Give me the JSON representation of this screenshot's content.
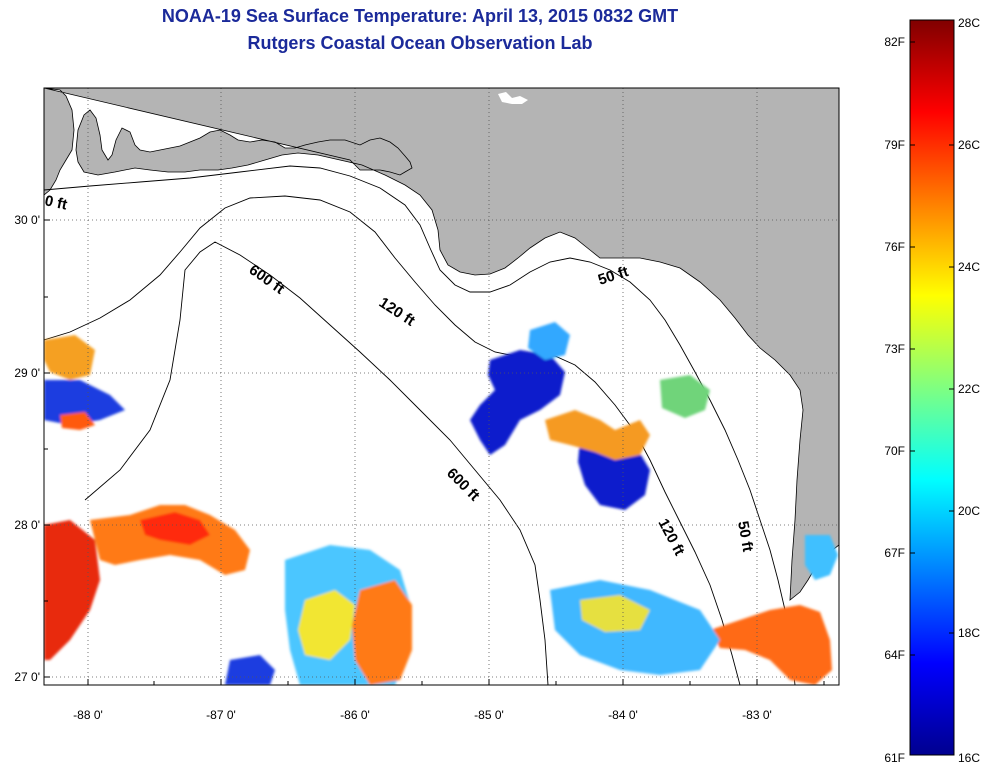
{
  "title": {
    "line1": "NOAA-19 Sea Surface Temperature:  April 13, 2015 0832 GMT",
    "line2": "Rutgers Coastal Ocean Observation Lab"
  },
  "map": {
    "lon_ticks": [
      "-88 0'",
      "-87 0'",
      "-86 0'",
      "-85 0'",
      "-84 0'",
      "-83 0'"
    ],
    "lat_ticks": [
      "30 0'",
      "29 0'",
      "28 0'",
      "27 0'"
    ],
    "contour_labels": [
      "600 ft",
      "120 ft",
      "50 ft",
      "600 ft",
      "120 ft",
      "50 ft",
      "0 ft"
    ]
  },
  "colorbar": {
    "fahrenheit_labels": [
      "82F",
      "79F",
      "76F",
      "73F",
      "70F",
      "67F",
      "64F",
      "61F"
    ],
    "celsius_labels": [
      "28C",
      "26C",
      "24C",
      "22C",
      "20C",
      "18C",
      "16C"
    ],
    "colors": [
      "#00008f",
      "#0000ff",
      "#0080ff",
      "#00ffff",
      "#80ff80",
      "#ffff00",
      "#ff8000",
      "#ff0000",
      "#800000"
    ]
  },
  "palette": {
    "land": "#b4b4b4",
    "ocean": "#ffffff",
    "title": "#1b2a9a"
  }
}
